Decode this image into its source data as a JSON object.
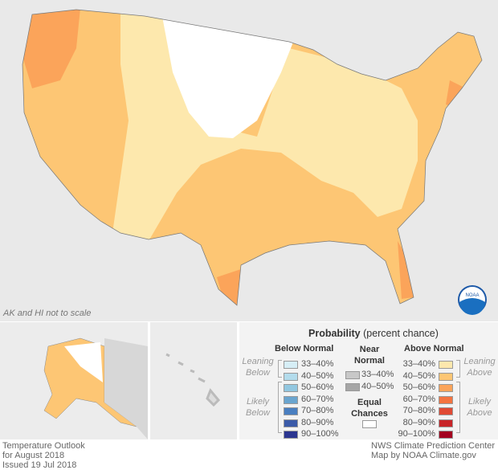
{
  "map": {
    "note": "AK and HI not to scale",
    "logo": "NOAA"
  },
  "legend": {
    "title": "Probability",
    "title_sub": "(percent chance)",
    "below_header": "Below Normal",
    "near_header": "Near Normal",
    "above_header": "Above Normal",
    "leaning_below": "Leaning Below",
    "likely_below": "Likely Below",
    "leaning_above": "Leaning Above",
    "likely_above": "Likely Above",
    "equal_chances": "Equal Chances",
    "below": [
      {
        "label": "33–40%",
        "color": "#d6eef6"
      },
      {
        "label": "40–50%",
        "color": "#b3dcec"
      },
      {
        "label": "50–60%",
        "color": "#92c7e0"
      },
      {
        "label": "60–70%",
        "color": "#6aa5cf"
      },
      {
        "label": "70–80%",
        "color": "#4a7fc0"
      },
      {
        "label": "80–90%",
        "color": "#3a5aa8"
      },
      {
        "label": "90–100%",
        "color": "#2b3590"
      }
    ],
    "near": [
      {
        "label": "33–40%",
        "color": "#c8c8c8"
      },
      {
        "label": "40–50%",
        "color": "#a6a6a6"
      }
    ],
    "above": [
      {
        "label": "33–40%",
        "color": "#fde8ad"
      },
      {
        "label": "40–50%",
        "color": "#fdc674"
      },
      {
        "label": "50–60%",
        "color": "#fba45a"
      },
      {
        "label": "60–70%",
        "color": "#f47440"
      },
      {
        "label": "70–80%",
        "color": "#e04a34"
      },
      {
        "label": "80–90%",
        "color": "#c82428"
      },
      {
        "label": "90–100%",
        "color": "#a3001f"
      }
    ]
  },
  "footer": {
    "left": [
      "Temperature Outlook",
      "for August 2018",
      "Issued 19 Jul 2018"
    ],
    "right": [
      "NWS Climate Prediction Center",
      "Map by NOAA Climate.gov"
    ]
  }
}
